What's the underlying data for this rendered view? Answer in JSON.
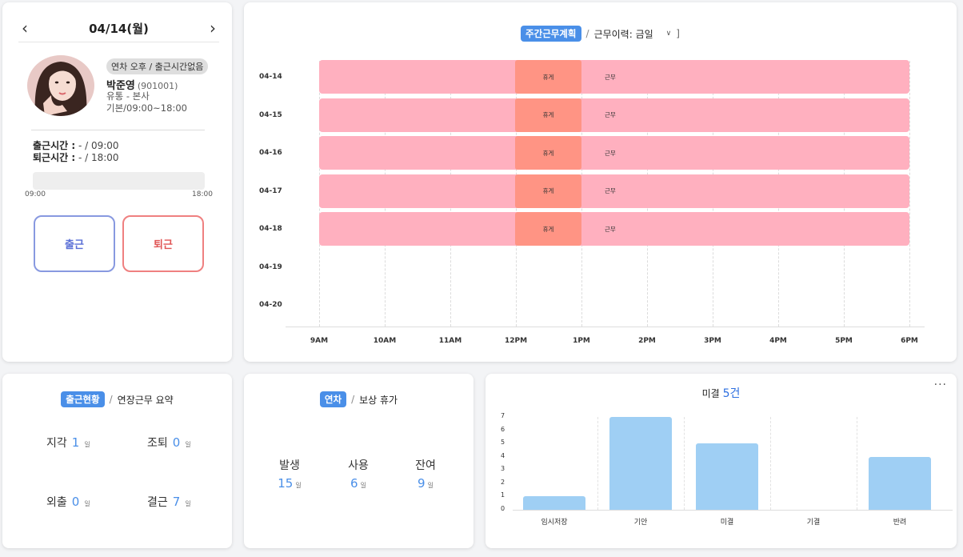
{
  "profile": {
    "date": "04/14(월)",
    "status": "연차 오후 / 출근시간없음",
    "name": "박준영",
    "code": "(901001)",
    "dept": "유통 - 본사",
    "hours": "기본/09:00~18:00",
    "in_label": "출근시간 :",
    "in_value": " - / 09:00",
    "out_label": "퇴근시간 :",
    "out_value": " - / 18:00",
    "progress_percent": 0,
    "progress_start": "09:00",
    "progress_end": "18:00",
    "btn_in": "출근",
    "btn_out": "퇴근"
  },
  "schedule": {
    "tag": "주간근무계획",
    "sep": "/",
    "dropdown": "근무이력: 금일",
    "bracket": "]",
    "break_label": "휴게",
    "work_label": "근무",
    "rows": [
      {
        "day": "04-14",
        "has_shift": true
      },
      {
        "day": "04-15",
        "has_shift": true
      },
      {
        "day": "04-16",
        "has_shift": true
      },
      {
        "day": "04-17",
        "has_shift": true
      },
      {
        "day": "04-18",
        "has_shift": true
      },
      {
        "day": "04-19",
        "has_shift": false
      },
      {
        "day": "04-20",
        "has_shift": false
      }
    ],
    "hours": [
      "9AM",
      "10AM",
      "11AM",
      "12PM",
      "1PM",
      "2PM",
      "3PM",
      "4PM",
      "5PM",
      "6PM"
    ]
  },
  "attendance": {
    "tag": "출근현황",
    "sep": "/",
    "other": "연장근무 요약",
    "unit": "일",
    "late_label": "지각",
    "late_value": "1",
    "early_label": "조퇴",
    "early_value": "0",
    "out_label": "외출",
    "out_value": "0",
    "absent_label": "결근",
    "absent_value": "7"
  },
  "leave": {
    "tag": "연차",
    "sep": "/",
    "other": "보상 휴가",
    "unit": "일",
    "issued_label": "발생",
    "issued_value": "15",
    "used_label": "사용",
    "used_value": "6",
    "remain_label": "잔여",
    "remain_value": "9"
  },
  "approval": {
    "title": "미결",
    "count": "5건",
    "more": "···",
    "chart_data": {
      "type": "bar",
      "title": "미결 5건",
      "categories": [
        "임시저장",
        "기안",
        "미결",
        "기결",
        "반려"
      ],
      "values": [
        1,
        7,
        5,
        0,
        4
      ],
      "ylim": [
        0,
        7
      ],
      "yticks": [
        "0",
        "1",
        "2",
        "3",
        "4",
        "5",
        "6",
        "7"
      ],
      "color": "#9fcff4"
    }
  }
}
